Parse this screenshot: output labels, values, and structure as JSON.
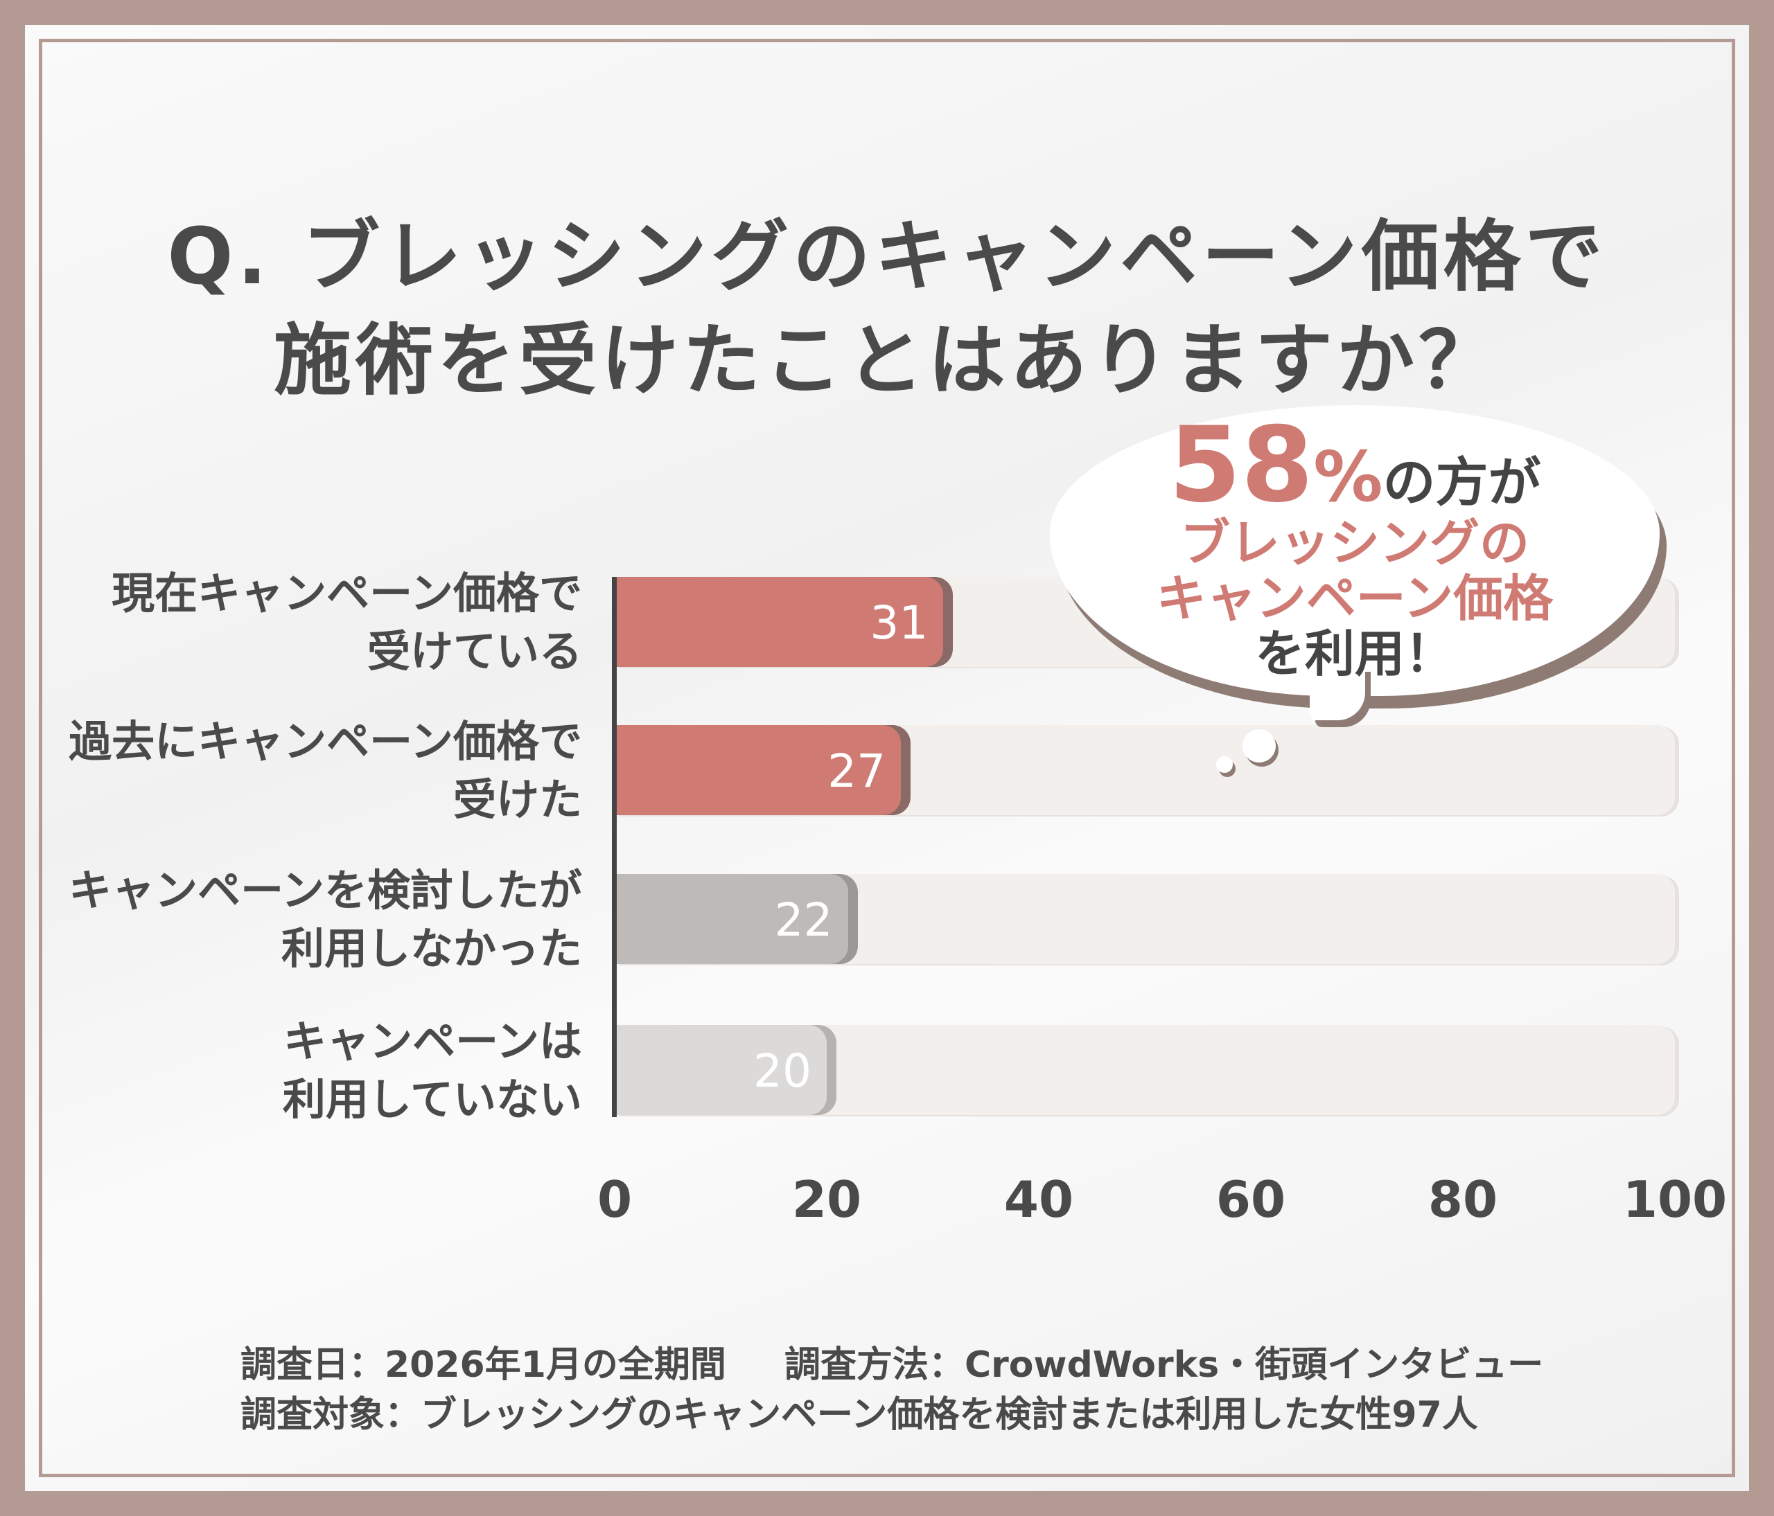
{
  "chart_data": {
    "type": "bar",
    "orientation": "horizontal",
    "title": "Q. ブレッシングのキャンペーン価格で 施術を受けたことはありますか？",
    "title_lines": [
      "Q. ブレッシングのキャンペーン価格で",
      "施術を受けたことはありますか？"
    ],
    "categories": [
      [
        "現在キャンペーン価格で",
        "受けている"
      ],
      [
        "過去にキャンペーン価格で",
        "受けた"
      ],
      [
        "キャンペーンを検討したが",
        "利用しなかった"
      ],
      [
        "キャンペーンは",
        "利用していない"
      ]
    ],
    "values": [
      31,
      27,
      22,
      20
    ],
    "value_labels": [
      "31",
      "27",
      "22",
      "20"
    ],
    "colors": [
      "#d07a74",
      "#d07a74",
      "#bdbab8",
      "#dcdad9"
    ],
    "shadow_colors": [
      "#8a6a66",
      "#8a6a66",
      "#9c9896",
      "#b5b2b0"
    ],
    "xlim": [
      0,
      100
    ],
    "xticks": [
      "0",
      "20",
      "40",
      "60",
      "80",
      "100"
    ],
    "xtick_values": [
      0,
      20,
      40,
      60,
      80,
      100
    ],
    "grid": false
  },
  "callout": {
    "big": "58",
    "pct": "%",
    "rest": "の方が",
    "line2": "ブレッシングの",
    "line3": "キャンペーン価格",
    "line4": "を利用！"
  },
  "footer": {
    "line1a": "調査日：2026年1月の全期間",
    "line1b": "調査方法：CrowdWorks・街頭インタビュー",
    "line2": "調査対象：ブレッシングのキャンペーン価格を検討または利用した女性97人"
  },
  "accent": "#d07a74"
}
